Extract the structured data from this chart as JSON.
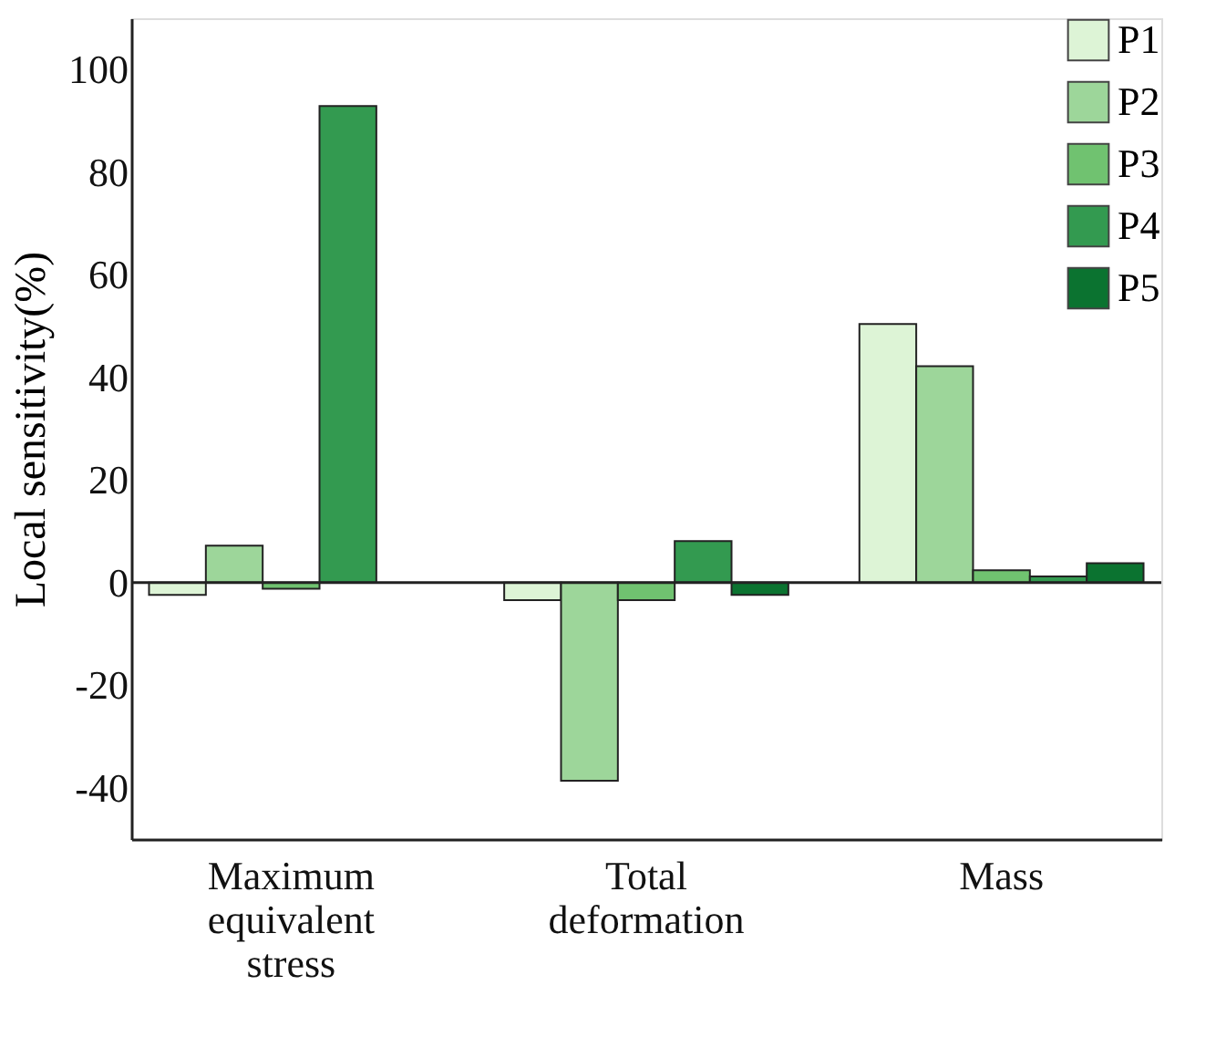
{
  "chart_data": {
    "type": "bar",
    "ylabel": "Local sensitivity(%)",
    "categories": [
      "Maximum equivalent stress",
      "Total deformation",
      "Mass"
    ],
    "series": [
      {
        "name": "P1",
        "color": "#ddf4d6",
        "values": [
          -2.4,
          -3.4,
          50.4
        ]
      },
      {
        "name": "P2",
        "color": "#9dd69a",
        "values": [
          7.2,
          -38.6,
          42.2
        ]
      },
      {
        "name": "P3",
        "color": "#70c270",
        "values": [
          -1.2,
          -3.4,
          2.4
        ]
      },
      {
        "name": "P4",
        "color": "#339a50",
        "values": [
          92.9,
          8.1,
          1.2
        ]
      },
      {
        "name": "P5",
        "color": "#0b7330",
        "values": [
          null,
          -2.4,
          3.8
        ]
      }
    ],
    "ylim": [
      -50,
      110
    ],
    "yticks": [
      -40,
      -20,
      0,
      20,
      40,
      60,
      80,
      100
    ],
    "ref_lines": [
      {
        "axis": "y",
        "value": 0
      }
    ],
    "grid": false,
    "legend": "top right"
  }
}
